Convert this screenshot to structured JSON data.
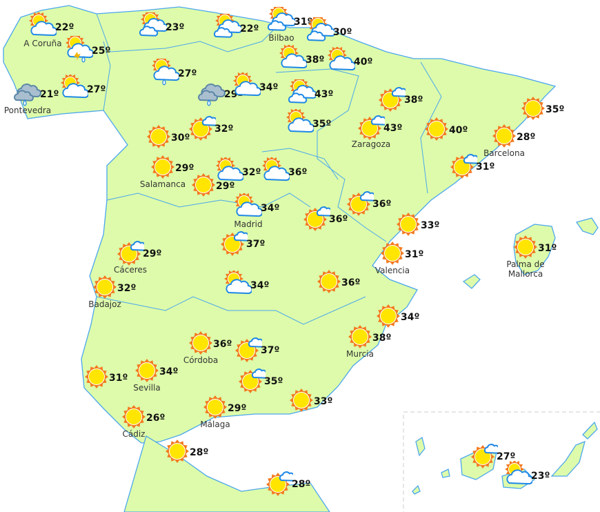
{
  "colors": {
    "land": "#ddfbaa",
    "border": "#4aa6ee",
    "sun_core": "#ffe500",
    "sun_rays": "#f47a1f",
    "cloud_stroke": "#1e88e5",
    "overcast": "#a9bfcf"
  },
  "stations": [
    {
      "name": "A Coruña",
      "temp": "22º",
      "icon": "cloud-sun"
    },
    {
      "name": "",
      "temp": "25º",
      "icon": "storm"
    },
    {
      "name": "Pontevedra",
      "temp": "21º",
      "icon": "overcast-rain"
    },
    {
      "name": "",
      "temp": "27º",
      "icon": "cloud-sun"
    },
    {
      "name": "",
      "temp": "23º",
      "icon": "clouds-sun"
    },
    {
      "name": "",
      "temp": "22º",
      "icon": "clouds-sun"
    },
    {
      "name": "Bilbao",
      "temp": "31º",
      "icon": "clouds-sun"
    },
    {
      "name": "",
      "temp": "30º",
      "icon": "clouds-sun"
    },
    {
      "name": "",
      "temp": "38º",
      "icon": "cloud-sun"
    },
    {
      "name": "",
      "temp": "40º",
      "icon": "cloud-sun"
    },
    {
      "name": "",
      "temp": "27º",
      "icon": "rain-sun"
    },
    {
      "name": "",
      "temp": "29º",
      "icon": "overcast-rain"
    },
    {
      "name": "",
      "temp": "34º",
      "icon": "cloud-sun"
    },
    {
      "name": "",
      "temp": "43º",
      "icon": "clouds-sun"
    },
    {
      "name": "",
      "temp": "35º",
      "icon": "cloud-sun"
    },
    {
      "name": "",
      "temp": "30º",
      "icon": "sun"
    },
    {
      "name": "",
      "temp": "32º",
      "icon": "sun-cloud"
    },
    {
      "name": "Salamanca",
      "temp": "29º",
      "icon": "sun"
    },
    {
      "name": "",
      "temp": "32º",
      "icon": "cloud-sun"
    },
    {
      "name": "",
      "temp": "29º",
      "icon": "sun"
    },
    {
      "name": "",
      "temp": "36º",
      "icon": "cloud-sun"
    },
    {
      "name": "Madrid",
      "temp": "34º",
      "icon": "cloud-sun"
    },
    {
      "name": "Zaragoza",
      "temp": "43º",
      "icon": "sun-cloud"
    },
    {
      "name": "",
      "temp": "38º",
      "icon": "sun-cloud"
    },
    {
      "name": "",
      "temp": "40º",
      "icon": "sun"
    },
    {
      "name": "",
      "temp": "35º",
      "icon": "sun"
    },
    {
      "name": "Barcelona",
      "temp": "28º",
      "icon": "sun"
    },
    {
      "name": "",
      "temp": "31º",
      "icon": "sun-cloud"
    },
    {
      "name": "",
      "temp": "36º",
      "icon": "sun-cloud"
    },
    {
      "name": "",
      "temp": "36º",
      "icon": "sun-cloud"
    },
    {
      "name": "",
      "temp": "33º",
      "icon": "sun"
    },
    {
      "name": "",
      "temp": "37º",
      "icon": "sun-cloud"
    },
    {
      "name": "Cáceres",
      "temp": "29º",
      "icon": "sun-cloud"
    },
    {
      "name": "Badajoz",
      "temp": "32º",
      "icon": "sun"
    },
    {
      "name": "",
      "temp": "34º",
      "icon": "cloud-sun"
    },
    {
      "name": "",
      "temp": "36º",
      "icon": "sun"
    },
    {
      "name": "Valencia",
      "temp": "31º",
      "icon": "sun"
    },
    {
      "name": "Palma de Mallorca",
      "temp": "31º",
      "icon": "sun"
    },
    {
      "name": "",
      "temp": "34º",
      "icon": "sun"
    },
    {
      "name": "Murcia",
      "temp": "38º",
      "icon": "sun"
    },
    {
      "name": "Córdoba",
      "temp": "36º",
      "icon": "sun"
    },
    {
      "name": "",
      "temp": "37º",
      "icon": "sun-cloud"
    },
    {
      "name": "",
      "temp": "31º",
      "icon": "sun"
    },
    {
      "name": "Sevilla",
      "temp": "34º",
      "icon": "sun"
    },
    {
      "name": "",
      "temp": "35º",
      "icon": "sun-cloud"
    },
    {
      "name": "",
      "temp": "33º",
      "icon": "sun"
    },
    {
      "name": "Málaga",
      "temp": "29º",
      "icon": "sun"
    },
    {
      "name": "Cádiz",
      "temp": "26º",
      "icon": "sun"
    },
    {
      "name": "",
      "temp": "28º",
      "icon": "sun"
    },
    {
      "name": "",
      "temp": "28º",
      "icon": "sun-cloud"
    },
    {
      "name": "",
      "temp": "27º",
      "icon": "sun-cloud"
    },
    {
      "name": "",
      "temp": "23º",
      "icon": "cloud-sun"
    }
  ]
}
